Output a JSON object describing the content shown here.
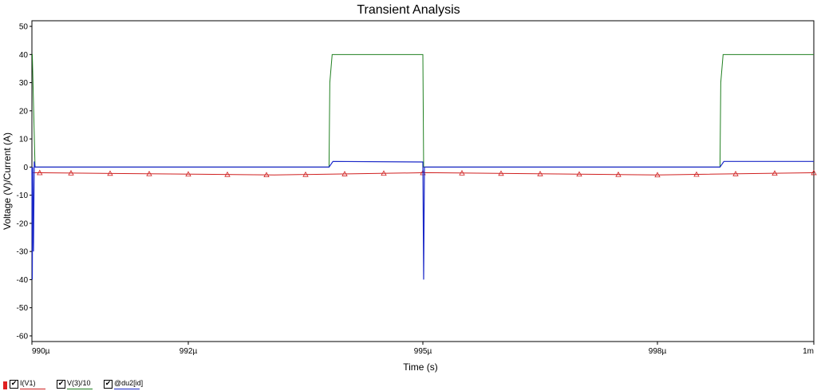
{
  "chart_data": {
    "type": "line",
    "title": "Transient Analysis",
    "xlabel": "Time (s)",
    "ylabel": "Voltage (V)/Current (A)",
    "xlim": [
      0.00099,
      0.001
    ],
    "ylim": [
      -62,
      52
    ],
    "yticks": [
      50,
      40,
      30,
      20,
      10,
      0,
      -10,
      -20,
      -30,
      -40,
      -50,
      -60
    ],
    "xticks": [
      {
        "value": 0.00099,
        "label": "990µ"
      },
      {
        "value": 0.000992,
        "label": "992µ"
      },
      {
        "value": 0.000995,
        "label": "995µ"
      },
      {
        "value": 0.000998,
        "label": "998µ"
      },
      {
        "value": 0.001,
        "label": "1m"
      }
    ],
    "grid": false,
    "legend_position": "bottom-left",
    "series": [
      {
        "name": "I(V1)",
        "color": "#d02020",
        "marker": "triangle",
        "x": [
          0.00099,
          0.0009931,
          0.00099505,
          0.000998,
          0.001
        ],
        "y": [
          -2,
          -2.8,
          -2,
          -2.8,
          -2
        ],
        "marker_x": [
          0.0009901,
          0.0009905,
          0.000991,
          0.0009915,
          0.000992,
          0.0009925,
          0.000993,
          0.0009935,
          0.000994,
          0.0009945,
          0.000995,
          0.0009955,
          0.000996,
          0.0009965,
          0.000997,
          0.0009975,
          0.000998,
          0.0009985,
          0.000999,
          0.0009995,
          0.001
        ]
      },
      {
        "name": "V(3)/10",
        "color": "#208020",
        "x": [
          0.00099,
          0.000990005,
          0.00099004,
          0.0009900401,
          0.0009938,
          0.00099381,
          0.00099384,
          0.000995,
          0.00099501,
          0.0009988,
          0.00099881,
          0.00099884,
          0.001
        ],
        "y": [
          40,
          40,
          0,
          0,
          0,
          30,
          40,
          40,
          0,
          0,
          30,
          40,
          40
        ]
      },
      {
        "name": "@du2[id]",
        "color": "#1a28c8",
        "x": [
          0.00099,
          0.000990005,
          0.00099001,
          0.00099002,
          0.00099003,
          0.00099004,
          0.0009938,
          0.00099385,
          0.000995,
          0.00099501,
          0.00099502,
          0.00099503,
          0.0009988,
          0.00099885,
          0.001
        ],
        "y": [
          0,
          -40,
          0,
          -30,
          2,
          0,
          0,
          2,
          1.8,
          -40,
          0,
          0,
          0,
          2,
          2
        ]
      }
    ]
  }
}
